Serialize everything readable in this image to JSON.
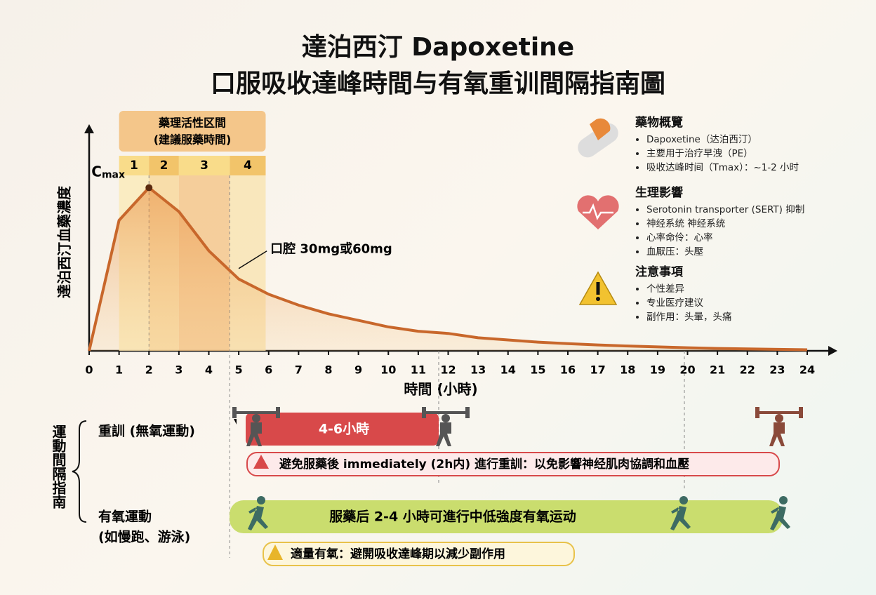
{
  "header": {
    "title_line1": "達泊西汀 Dapoxetine",
    "title_line2": "口服吸收達峰時間与有氧重训間隔指南圖"
  },
  "chart_data": {
    "type": "line",
    "x_label": "時間 (小時)",
    "y_label": "達泊西汀血藥濃度",
    "x": [
      0,
      1,
      2,
      3,
      4,
      5,
      6,
      7,
      8,
      9,
      10,
      11,
      12,
      13,
      14,
      15,
      16,
      17,
      18,
      19,
      20,
      21,
      22,
      23,
      24
    ],
    "series": [
      {
        "name": "口腔 30mg或60mg",
        "color": "#c8672b",
        "values": [
          0,
          60,
          75,
          64,
          46,
          33,
          26,
          21,
          17,
          14,
          11,
          9,
          8,
          6,
          5,
          4,
          3.3,
          2.7,
          2.2,
          1.8,
          1.4,
          1.1,
          0.9,
          0.7,
          0.5
        ]
      }
    ],
    "xlim": [
      0,
      24
    ],
    "ylim": [
      0,
      100
    ],
    "xticks": [
      0,
      1,
      2,
      3,
      4,
      5,
      6,
      7,
      8,
      9,
      10,
      11,
      12,
      13,
      14,
      15,
      16,
      17,
      18,
      19,
      20,
      21,
      22,
      23,
      24
    ],
    "peak_label": {
      "text": "C",
      "subscript": "max",
      "x": 2
    },
    "active_window": {
      "title_line1": "藥理活性区間",
      "title_line2": "(建議服藥時間)",
      "segments": [
        {
          "label": "1",
          "from": 1,
          "to": 2
        },
        {
          "label": "2",
          "from": 2,
          "to": 3
        },
        {
          "label": "3",
          "from": 3,
          "to": 4.7
        },
        {
          "label": "4",
          "from": 4.7,
          "to": 5.9
        }
      ]
    }
  },
  "info_panel": {
    "sections": [
      {
        "title": "藥物概覽",
        "items": [
          "Dapoxetine（达泊西汀）",
          "主要用于治疗早洩（PE）",
          "吸收达峰时间（Tmax）：~1-2 小时"
        ]
      },
      {
        "title": "生理影響",
        "items": [
          "Serotonin transporter (SERT) 抑制",
          "神经系统 神经系统",
          "心率命伶：心率",
          "血厭压：头壓"
        ]
      },
      {
        "title": "注意事項",
        "items": [
          "个性差异",
          "专业医疗建议",
          "副作用：头暈，头痛"
        ]
      }
    ]
  },
  "exercise_guide": {
    "title": "運動間隔指南",
    "strength": {
      "label": "重訓 (無氧運動)",
      "bar_text": "4-6小時",
      "warning": "避免服藥後 immediately (2h内) 進行重訓：以免影響神经肌肉協調和血壓"
    },
    "aerobic": {
      "label_line1": "有氧運動",
      "label_line2": "(如慢跑、游泳)",
      "bar_text": "服藥后 2-4 小時可進行中低強度有氧运动",
      "warning": "適量有氧：避開吸收達峰期以減少副作用"
    }
  }
}
